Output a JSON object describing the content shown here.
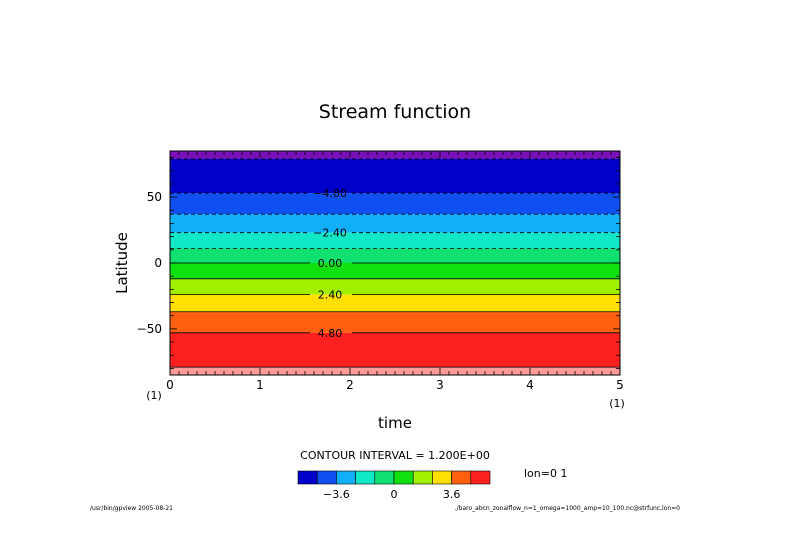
{
  "chart_data": {
    "type": "heatmap",
    "title": "Stream function",
    "xlabel": "time",
    "ylabel": "Latitude",
    "xlim": [
      0,
      5
    ],
    "ylim": [
      -85,
      85
    ],
    "x_ticks": [
      0,
      1,
      2,
      3,
      4,
      5
    ],
    "x_tick_labels": [
      "0",
      "1",
      "2",
      "3",
      "4",
      "5"
    ],
    "y_ticks": [
      50,
      0,
      -50
    ],
    "y_tick_labels": [
      "50",
      "0",
      "−50"
    ],
    "x_unit_left": "(1)",
    "x_unit_right": "(1)",
    "bands": [
      {
        "lat_top": 85,
        "lat_bottom": 79,
        "color": "#7a10b8"
      },
      {
        "lat_top": 79,
        "lat_bottom": 53,
        "color": "#0000c8"
      },
      {
        "lat_top": 53,
        "lat_bottom": 37,
        "color": "#1050f0"
      },
      {
        "lat_top": 37,
        "lat_bottom": 23,
        "color": "#10b0f8"
      },
      {
        "lat_top": 23,
        "lat_bottom": 11,
        "color": "#10e8c8"
      },
      {
        "lat_top": 11,
        "lat_bottom": 0,
        "color": "#10e070"
      },
      {
        "lat_top": 0,
        "lat_bottom": -12,
        "color": "#10e010"
      },
      {
        "lat_top": -12,
        "lat_bottom": -24,
        "color": "#a0f000"
      },
      {
        "lat_top": -24,
        "lat_bottom": -37,
        "color": "#ffe000"
      },
      {
        "lat_top": -37,
        "lat_bottom": -53,
        "color": "#ff6010"
      },
      {
        "lat_top": -53,
        "lat_bottom": -79,
        "color": "#ff2020"
      },
      {
        "lat_top": -79,
        "lat_bottom": -85,
        "color": "#ff9a9a"
      }
    ],
    "contours": [
      {
        "lat": 79,
        "dashed": true
      },
      {
        "lat": 53,
        "dashed": true,
        "label": "−4.80"
      },
      {
        "lat": 37,
        "dashed": true
      },
      {
        "lat": 23,
        "dashed": true,
        "label": "−2.40"
      },
      {
        "lat": 11,
        "dashed": true
      },
      {
        "lat": 0,
        "dashed": false,
        "label": "0.00"
      },
      {
        "lat": -12,
        "dashed": false
      },
      {
        "lat": -24,
        "dashed": false,
        "label": "2.40"
      },
      {
        "lat": -37,
        "dashed": false
      },
      {
        "lat": -53,
        "dashed": false,
        "label": "4.80"
      },
      {
        "lat": -79,
        "dashed": false
      }
    ],
    "contour_interval_text": "CONTOUR INTERVAL = 1.200E+00",
    "colorbar": {
      "colors": [
        "#0000c8",
        "#1050f0",
        "#10b0f8",
        "#10e8c8",
        "#10e070",
        "#10e010",
        "#a0f000",
        "#ffe000",
        "#ff6010",
        "#ff2020"
      ],
      "labels": [
        {
          "text": "−3.6",
          "boundary": 2
        },
        {
          "text": "0",
          "boundary": 5
        },
        {
          "text": "3.6",
          "boundary": 8
        }
      ]
    },
    "annotation_right": "lon=0 1",
    "footer_left": "/usr/bin/gpview  2005-08-21",
    "footer_right": "./baro_abcn_zonalflow_n=1_omega=1000_amp=10_100.nc@strfunc,lon=0"
  }
}
